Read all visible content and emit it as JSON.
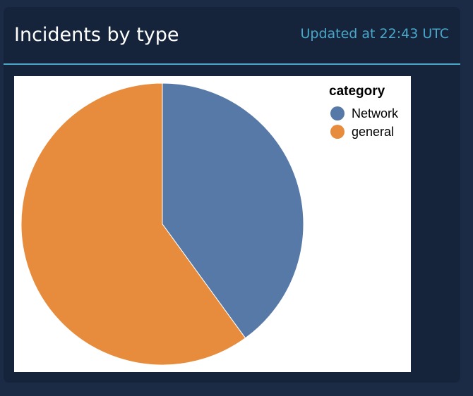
{
  "panel": {
    "title": "Incidents by type",
    "updated": "Updated at 22:43 UTC"
  },
  "colors": {
    "page_bg": "#1b2a45",
    "panel_bg": "#15233b",
    "accent": "#4aa7c9",
    "chart_bg": "#ffffff"
  },
  "chart_data": {
    "type": "pie",
    "title": "",
    "legend_title": "category",
    "legend_position": "top-right",
    "slices": [
      {
        "label": "Network",
        "value": 40,
        "color": "#5779a8"
      },
      {
        "label": "general",
        "value": 60,
        "color": "#e68c3c"
      }
    ]
  }
}
